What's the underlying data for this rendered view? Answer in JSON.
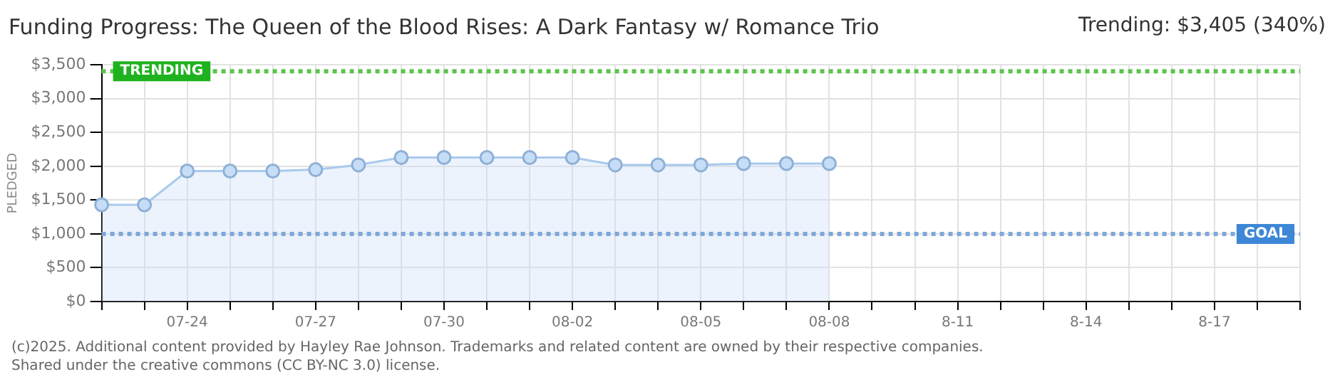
{
  "chart_data": {
    "type": "area",
    "title": "Funding Progress: The Queen of the Blood Rises: A Dark Fantasy w/ Romance Trio",
    "subtitle": "Trending: $3,405 (340%)",
    "ylabel": "PLEDGED",
    "categories": [
      null,
      null,
      "07-24",
      null,
      null,
      "07-27",
      null,
      null,
      "07-30",
      null,
      null,
      "08-02",
      null,
      null,
      "08-05",
      null,
      null,
      "08-08",
      null,
      null,
      "8-11",
      null,
      null,
      "8-14",
      null,
      null,
      "8-17",
      null,
      null
    ],
    "series": [
      {
        "color": "#a9c9ee",
        "values": [
          1430,
          1430,
          1930,
          1930,
          1930,
          1950,
          2020,
          2130,
          2130,
          2130,
          2130,
          2130,
          2020,
          2020,
          2020,
          2040,
          2040,
          2040,
          null,
          null,
          null,
          null,
          null,
          null,
          null,
          null,
          null,
          null,
          null
        ]
      }
    ],
    "ylim": [
      0,
      3500
    ],
    "yticks": [
      {
        "value": 0,
        "label": "$0"
      },
      {
        "value": 500,
        "label": "$500"
      },
      {
        "value": 1000,
        "label": "$1,000"
      },
      {
        "value": 1500,
        "label": "$1,500"
      },
      {
        "value": 2000,
        "label": "$2,000"
      },
      {
        "value": 2500,
        "label": "$2,500"
      },
      {
        "value": 3000,
        "label": "$3,000"
      },
      {
        "value": 3500,
        "label": "$3,500"
      }
    ],
    "ref_lines": [
      {
        "axis": "y",
        "value": 3405,
        "label": "TRENDING",
        "color": "#5cc44c",
        "line_style": "dotted"
      },
      {
        "axis": "y",
        "value": 1000,
        "label": "GOAL",
        "color": "#7fa8d8",
        "line_style": "dotted"
      }
    ],
    "grid": true,
    "legend": false,
    "marker": "circle",
    "line_style": "solid",
    "annotations": [
      "(c)2025. Additional content provided by Hayley Rae Johnson. Trademarks and related content are owned by their respective companies.",
      "Shared under the creative commons (CC BY-NC 3.0) license."
    ]
  }
}
